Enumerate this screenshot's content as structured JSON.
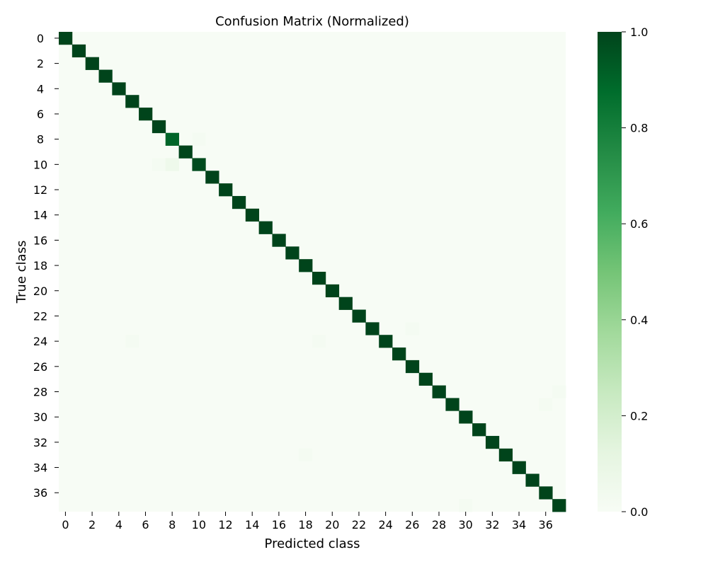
{
  "chart_data": {
    "type": "heatmap",
    "title": "Confusion Matrix (Normalized)",
    "xlabel": "Predicted class",
    "ylabel": "True class",
    "n_classes": 38,
    "x_tick_labels": [
      "0",
      "2",
      "4",
      "6",
      "8",
      "10",
      "12",
      "14",
      "16",
      "18",
      "20",
      "22",
      "24",
      "26",
      "28",
      "30",
      "32",
      "34",
      "36"
    ],
    "y_tick_labels": [
      "0",
      "2",
      "4",
      "6",
      "8",
      "10",
      "12",
      "14",
      "16",
      "18",
      "20",
      "22",
      "24",
      "26",
      "28",
      "30",
      "32",
      "34",
      "36"
    ],
    "diagonal": [
      1.0,
      1.0,
      1.0,
      1.0,
      1.0,
      1.0,
      1.0,
      1.0,
      0.9,
      1.0,
      0.98,
      1.0,
      1.0,
      1.0,
      1.0,
      1.0,
      1.0,
      1.0,
      1.0,
      1.0,
      1.0,
      1.0,
      1.0,
      1.0,
      1.0,
      1.0,
      1.0,
      1.0,
      1.0,
      1.0,
      1.0,
      1.0,
      1.0,
      1.0,
      1.0,
      1.0,
      1.0,
      1.0
    ],
    "off_diagonal": [
      {
        "row": 8,
        "col": 10,
        "value": 0.02
      },
      {
        "row": 10,
        "col": 7,
        "value": 0.02
      },
      {
        "row": 10,
        "col": 8,
        "value": 0.06
      },
      {
        "row": 23,
        "col": 26,
        "value": 0.02
      },
      {
        "row": 24,
        "col": 5,
        "value": 0.02
      },
      {
        "row": 24,
        "col": 19,
        "value": 0.02
      },
      {
        "row": 28,
        "col": 37,
        "value": 0.02
      },
      {
        "row": 29,
        "col": 36,
        "value": 0.02
      },
      {
        "row": 33,
        "col": 18,
        "value": 0.02
      },
      {
        "row": 37,
        "col": 30,
        "value": 0.02
      }
    ],
    "colorbar": {
      "min": 0.0,
      "max": 1.0,
      "ticks": [
        "0.0",
        "0.2",
        "0.4",
        "0.6",
        "0.8",
        "1.0"
      ],
      "colormap": "Greens",
      "colors": [
        "#f7fcf5",
        "#e5f5e0",
        "#c7e9c0",
        "#a1d99b",
        "#74c476",
        "#41ab5d",
        "#238b45",
        "#006d2c",
        "#00441b"
      ]
    }
  }
}
